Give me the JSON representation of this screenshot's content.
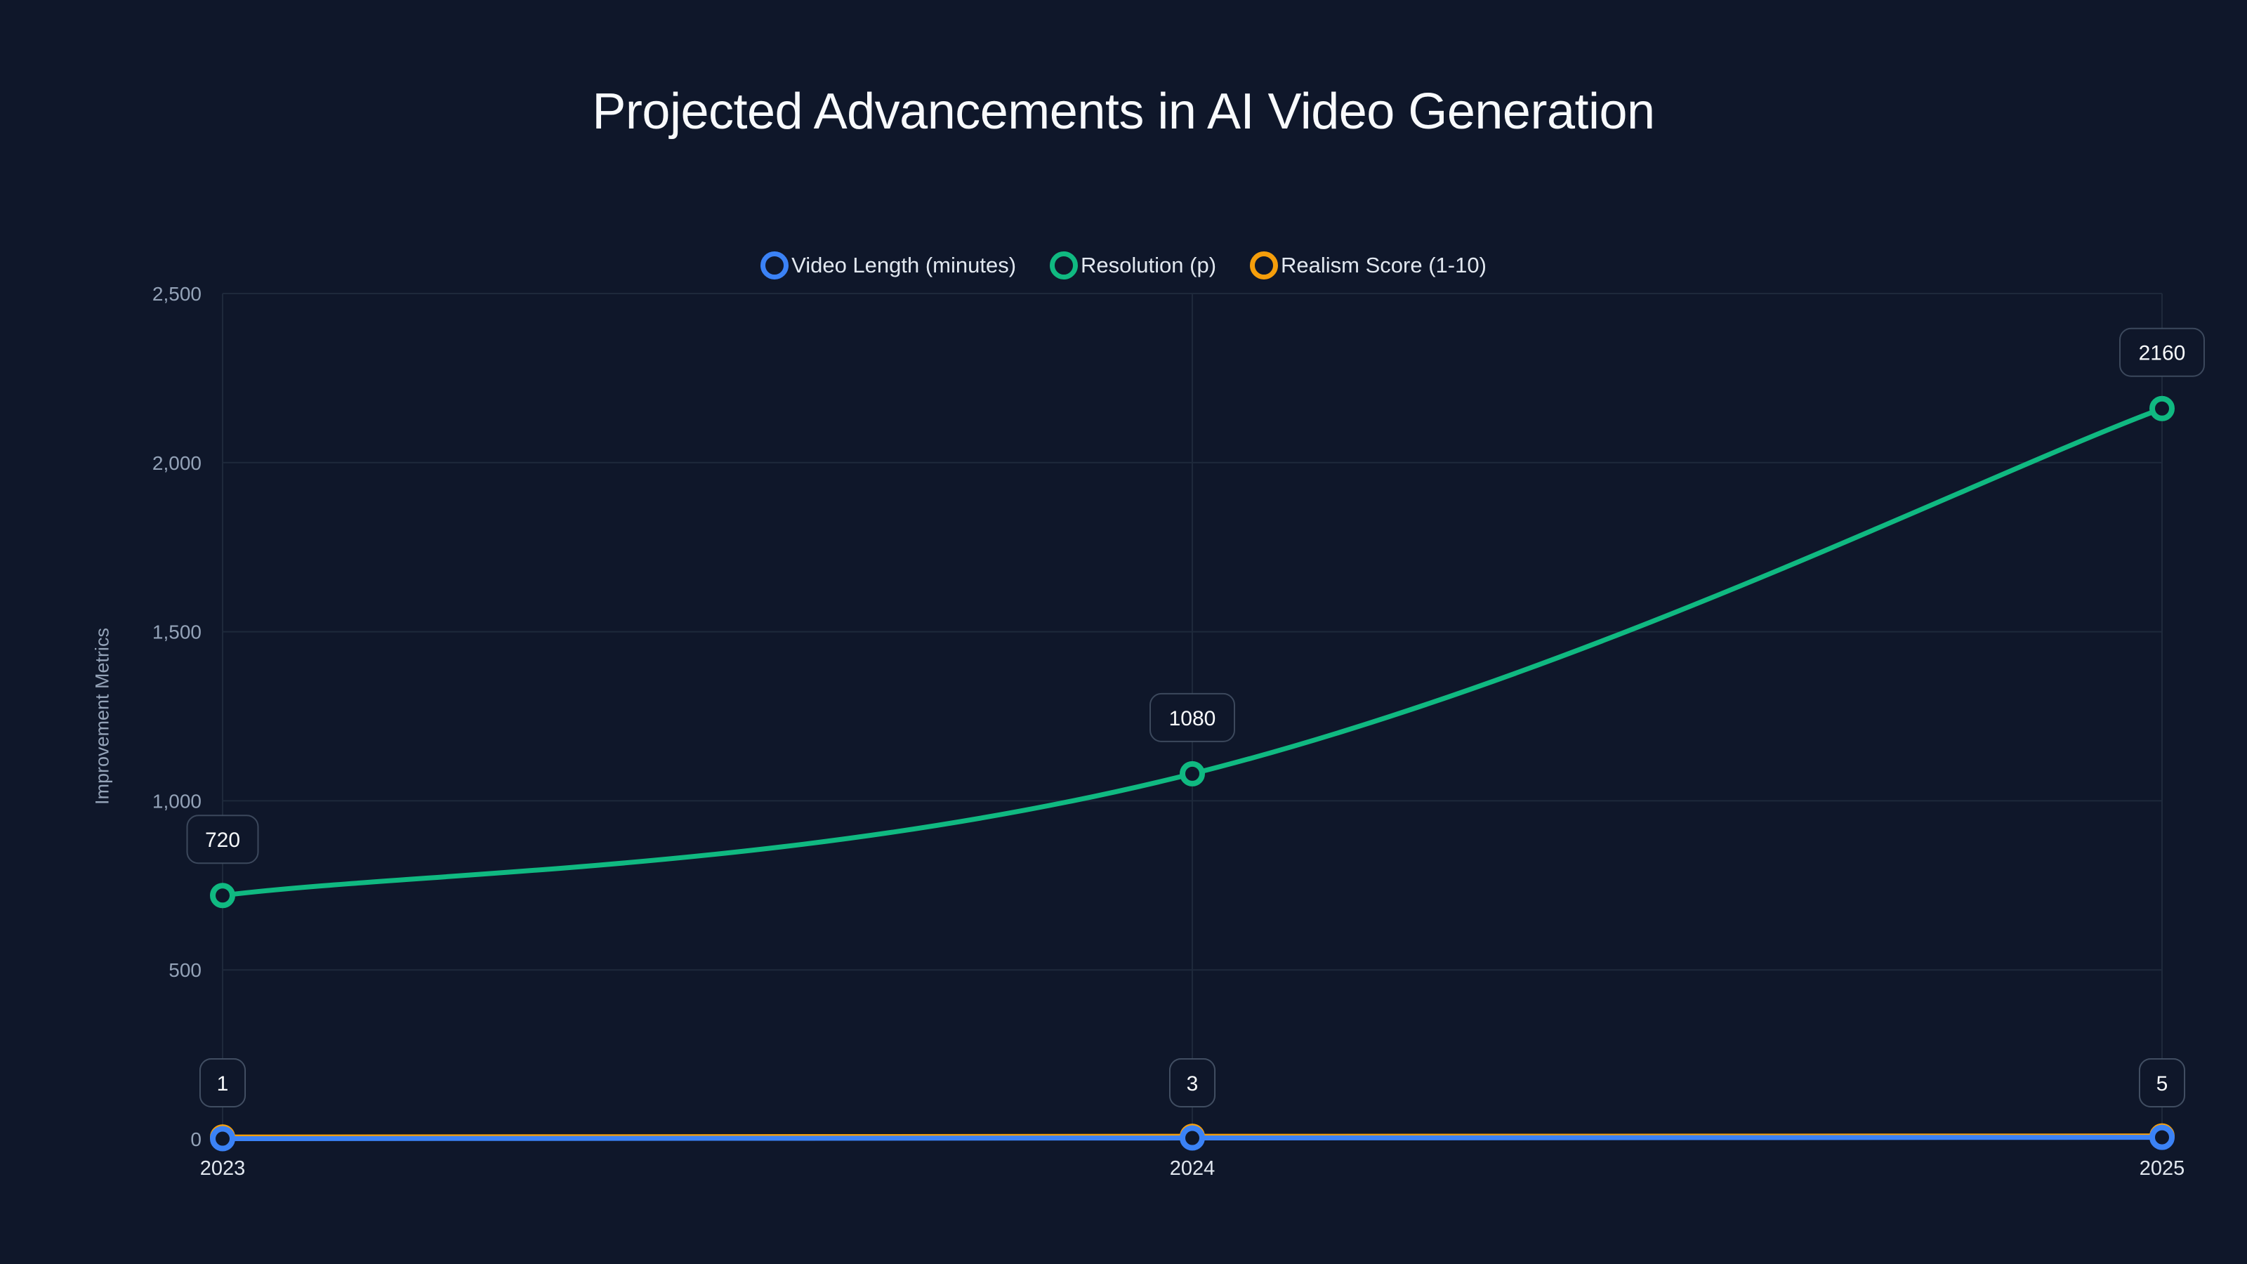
{
  "title": "Projected Advancements in AI Video Generation",
  "legend": [
    {
      "label": "Video Length (minutes)",
      "color": "#3b82f6"
    },
    {
      "label": "Resolution (p)",
      "color": "#10b981"
    },
    {
      "label": "Realism Score (1-10)",
      "color": "#f59e0b"
    }
  ],
  "axis": {
    "ylabel": "Improvement Metrics",
    "yticks": [
      "0",
      "500",
      "1,000",
      "1,500",
      "2,000",
      "2,500"
    ],
    "xticks": [
      "2023",
      "2024",
      "2025"
    ]
  },
  "colors": {
    "background": "#0f172a",
    "grid": "#1e293b",
    "tick_text": "#94a3b8",
    "label_box_border": "#475569"
  },
  "chart_data": {
    "type": "line",
    "title": "Projected Advancements in AI Video Generation",
    "xlabel": "",
    "ylabel": "Improvement Metrics",
    "categories": [
      "2023",
      "2024",
      "2025"
    ],
    "series": [
      {
        "name": "Video Length (minutes)",
        "values": [
          1,
          3,
          5
        ],
        "color": "#3b82f6"
      },
      {
        "name": "Resolution (p)",
        "values": [
          720,
          1080,
          2160
        ],
        "color": "#10b981"
      },
      {
        "name": "Realism Score (1-10)",
        "values": [
          6,
          8,
          9
        ],
        "color": "#f59e0b"
      }
    ],
    "ylim": [
      0,
      2500
    ],
    "yticks": [
      0,
      500,
      1000,
      1500,
      2000,
      2500
    ],
    "grid": true,
    "legend_position": "top",
    "data_labels": true
  }
}
